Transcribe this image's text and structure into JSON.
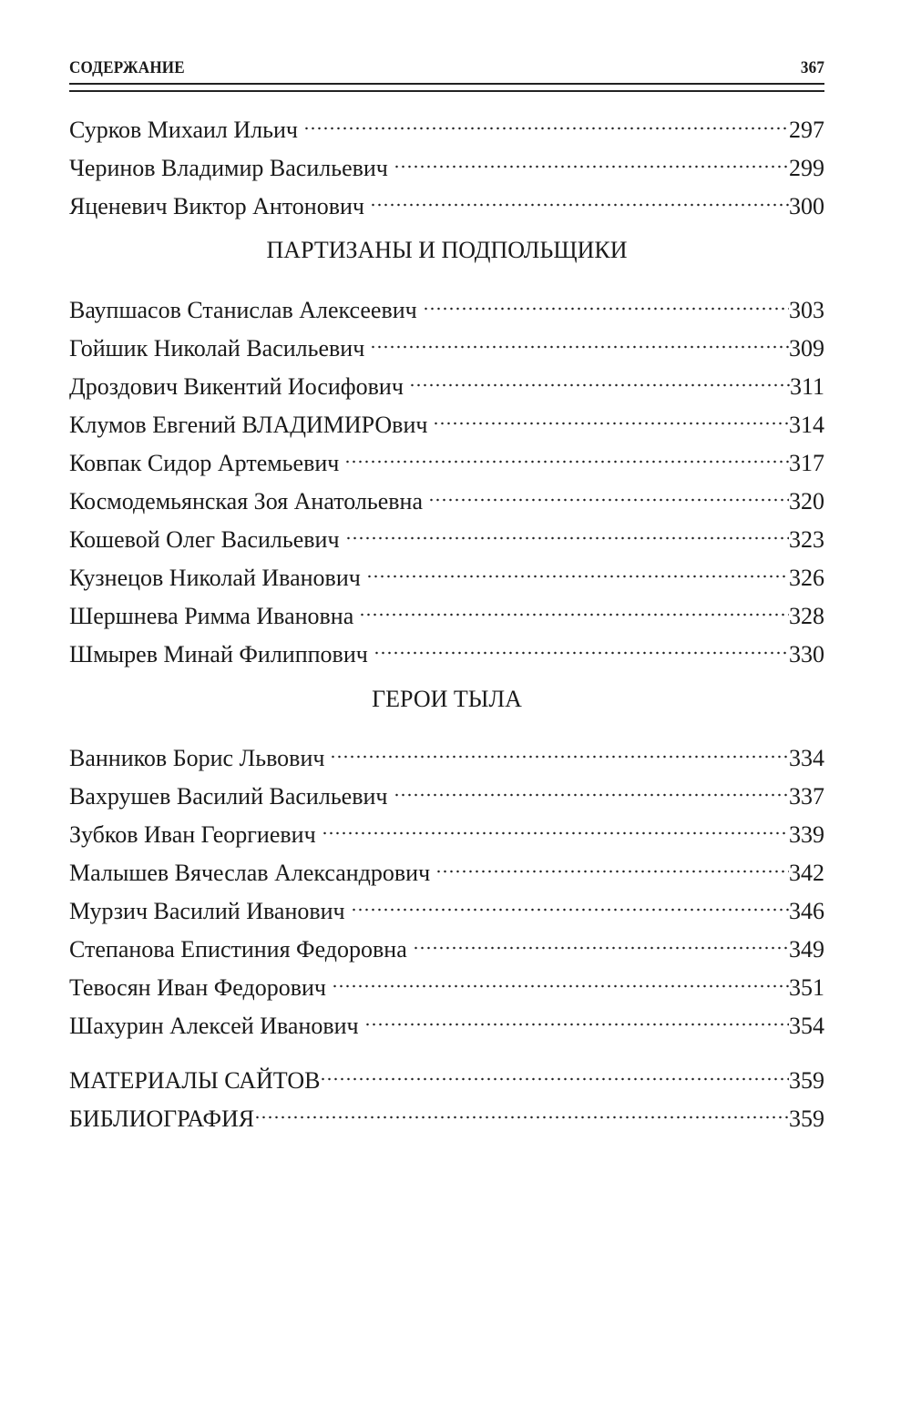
{
  "header": {
    "title": "СОДЕРЖАНИЕ",
    "page_number": "367"
  },
  "groups": [
    {
      "heading": "",
      "entries": [
        {
          "name": "Сурков Михаил Ильич",
          "page": "297"
        },
        {
          "name": "Черинов Владимир Васильевич",
          "page": "299"
        },
        {
          "name": "Яценевич Виктор Антонович",
          "page": "300"
        }
      ]
    },
    {
      "heading": "ПАРТИЗАНЫ И ПОДПОЛЬЩИКИ",
      "entries": [
        {
          "name": "Ваупшасов Станислав Алексеевич",
          "page": "303"
        },
        {
          "name": "Гойшик Николай Васильевич",
          "page": "309"
        },
        {
          "name": "Дроздович Викентий Иосифович",
          "page": "311"
        },
        {
          "name": "Клумов Евгений ВЛАДИМИРОвич",
          "page": "314"
        },
        {
          "name": "Ковпак Сидор Артемьевич",
          "page": "317"
        },
        {
          "name": "Космодемьянская Зоя Анатольевна",
          "page": "320"
        },
        {
          "name": "Кошевой Олег Васильевич",
          "page": "323"
        },
        {
          "name": "Кузнецов Николай Иванович",
          "page": "326"
        },
        {
          "name": "Шершнева Римма Ивановна",
          "page": "328"
        },
        {
          "name": "Шмырев Минай Филиппович",
          "page": "330"
        }
      ]
    },
    {
      "heading": "ГЕРОИ ТЫЛА",
      "entries": [
        {
          "name": "Ванников Борис Львович",
          "page": "334"
        },
        {
          "name": "Вахрушев Василий Васильевич",
          "page": "337"
        },
        {
          "name": "Зубков Иван Георгиевич",
          "page": "339"
        },
        {
          "name": "Малышев Вячеслав Александрович",
          "page": "342"
        },
        {
          "name": "Мурзич Василий Иванович",
          "page": "346"
        },
        {
          "name": "Степанова Епистиния Федоровна",
          "page": "349"
        },
        {
          "name": "Тевосян Иван Федорович",
          "page": "351"
        },
        {
          "name": "Шахурин Алексей Иванович",
          "page": "354"
        }
      ]
    },
    {
      "heading": "",
      "caps": true,
      "entries": [
        {
          "name": "МАТЕРИАЛЫ САЙТОВ",
          "page": "359"
        },
        {
          "name": "БИБЛИОГРАФИЯ",
          "page": "359"
        }
      ]
    }
  ]
}
